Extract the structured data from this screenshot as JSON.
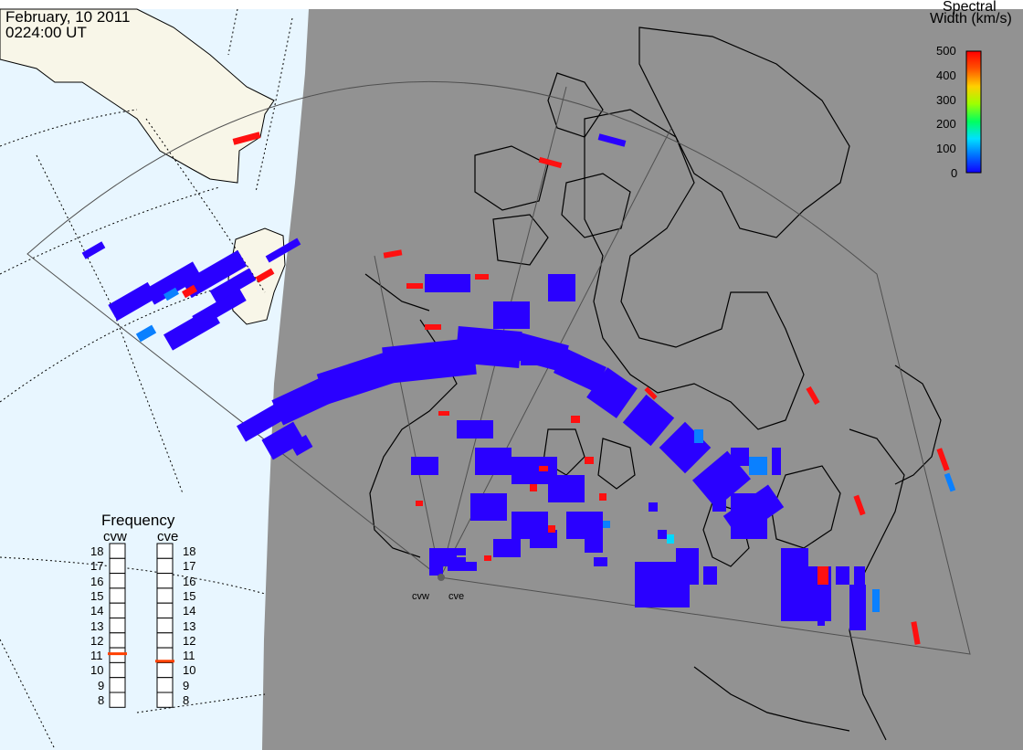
{
  "header": {
    "date": "February, 10 2011",
    "time": "0224:00 UT"
  },
  "colorbar": {
    "title_line1": "Spectral",
    "title_line2": "Width (km/s)",
    "ticks": [
      "500",
      "400",
      "300",
      "200",
      "100",
      "0"
    ],
    "min": 0,
    "max": 500,
    "colormap": [
      "#1000ff",
      "#0070ff",
      "#00e0ff",
      "#00ff60",
      "#a0ff00",
      "#ffd000",
      "#ff5000",
      "#ff0000"
    ]
  },
  "frequency_panel": {
    "title": "Frequency",
    "radars": [
      {
        "name": "cvw",
        "frequency": 11.1
      },
      {
        "name": "cve",
        "frequency": 10.6
      }
    ],
    "ticks": [
      "18",
      "17",
      "16",
      "15",
      "14",
      "13",
      "12",
      "11",
      "10",
      "9",
      "8"
    ],
    "min": 8,
    "max": 18,
    "marker_color": "#ff4000"
  },
  "sites": [
    {
      "name": "cvw"
    },
    {
      "name": "cve"
    }
  ],
  "colors": {
    "night_shade": "#929292",
    "ocean_day": "#e8f6ff",
    "land_day": "#f8f6e8",
    "coast": "#000000",
    "fov_outline": "#505050"
  }
}
